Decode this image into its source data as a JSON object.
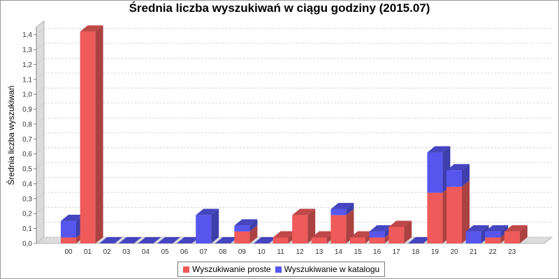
{
  "chart_data": {
    "type": "bar",
    "stacked": true,
    "three_d": true,
    "title": "Średnia liczba wyszukiwań w ciągu godziny (2015.07)",
    "xlabel": "",
    "ylabel": "Średnia liczba wyszukiwań",
    "ylim": [
      0,
      1.45
    ],
    "yticks": [
      "0,0",
      "0,1",
      "0,2",
      "0,3",
      "0,4",
      "0,5",
      "0,6",
      "0,7",
      "0,8",
      "0,9",
      "1,0",
      "1,1",
      "1,2",
      "1,3",
      "1,4"
    ],
    "grid": true,
    "legend_position": "bottom",
    "categories": [
      "00",
      "01",
      "02",
      "03",
      "04",
      "05",
      "06",
      "07",
      "08",
      "09",
      "10",
      "11",
      "12",
      "13",
      "14",
      "15",
      "16",
      "17",
      "18",
      "19",
      "20",
      "21",
      "22",
      "23"
    ],
    "series": [
      {
        "name": "Wyszukiwanie proste",
        "color": "#ef5a5a",
        "values": [
          0.04,
          1.42,
          0,
          0,
          0,
          0,
          0,
          0,
          0,
          0.08,
          0,
          0.04,
          0.19,
          0.04,
          0.19,
          0.04,
          0.04,
          0.11,
          0,
          0.34,
          0.38,
          0,
          0.04,
          0.08
        ]
      },
      {
        "name": "Wyszukiwanie w katalogu",
        "color": "#5656ef",
        "values": [
          0.11,
          0,
          0,
          0,
          0,
          0,
          0,
          0.19,
          0,
          0.04,
          0,
          0,
          0,
          0,
          0.04,
          0,
          0.04,
          0,
          0,
          0.27,
          0.11,
          0.08,
          0.04,
          0
        ]
      }
    ]
  }
}
